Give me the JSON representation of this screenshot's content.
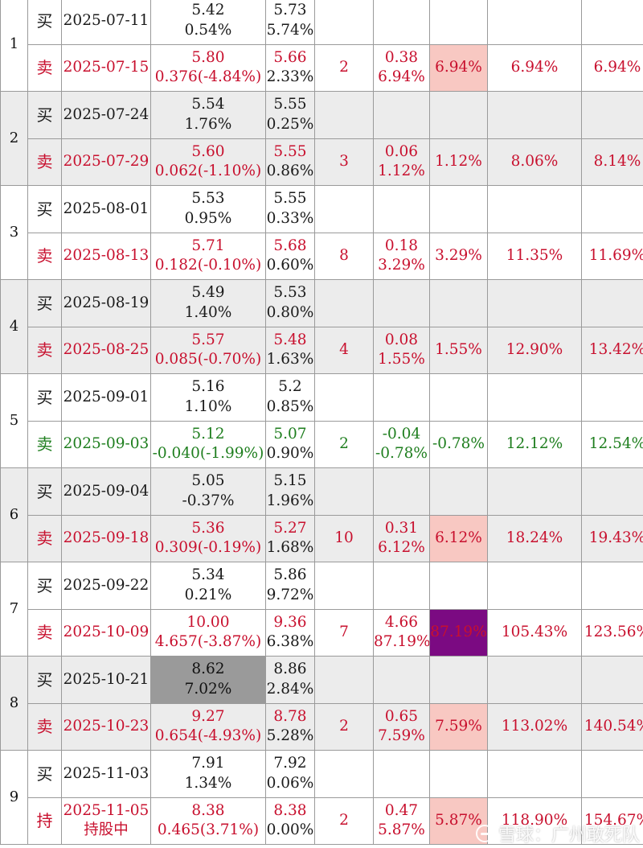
{
  "trades": [
    {
      "no": "1",
      "band": false,
      "buy": {
        "action": "买",
        "date": "2025-07-11",
        "price": "5.42",
        "pct": "0.54%",
        "ref": "5.73",
        "ref_pct": "5.74%"
      },
      "sell": {
        "action": "卖",
        "date": "2025-07-15",
        "price": "5.80",
        "detail": "0.376(-4.84%)",
        "ref": "5.66",
        "ref_pct": "2.33%",
        "days": "2",
        "gain": "0.38",
        "gain_pct": "6.94%",
        "ret": "6.94%",
        "cum": "6.94%",
        "comp": "6.94%",
        "color": "red",
        "ret_style": "pink"
      }
    },
    {
      "no": "2",
      "band": true,
      "buy": {
        "action": "买",
        "date": "2025-07-24",
        "price": "5.54",
        "pct": "1.76%",
        "ref": "5.55",
        "ref_pct": "0.25%"
      },
      "sell": {
        "action": "卖",
        "date": "2025-07-29",
        "price": "5.60",
        "detail": "0.062(-1.10%)",
        "ref": "5.55",
        "ref_pct": "0.86%",
        "days": "3",
        "gain": "0.06",
        "gain_pct": "1.12%",
        "ret": "1.12%",
        "cum": "8.06%",
        "comp": "8.14%",
        "color": "red",
        "ret_style": ""
      }
    },
    {
      "no": "3",
      "band": false,
      "buy": {
        "action": "买",
        "date": "2025-08-01",
        "price": "5.53",
        "pct": "0.95%",
        "ref": "5.55",
        "ref_pct": "0.33%"
      },
      "sell": {
        "action": "卖",
        "date": "2025-08-13",
        "price": "5.71",
        "detail": "0.182(-0.10%)",
        "ref": "5.68",
        "ref_pct": "0.60%",
        "days": "8",
        "gain": "0.18",
        "gain_pct": "3.29%",
        "ret": "3.29%",
        "cum": "11.35%",
        "comp": "11.69%",
        "color": "red",
        "ret_style": ""
      }
    },
    {
      "no": "4",
      "band": true,
      "buy": {
        "action": "买",
        "date": "2025-08-19",
        "price": "5.49",
        "pct": "1.40%",
        "ref": "5.53",
        "ref_pct": "0.80%"
      },
      "sell": {
        "action": "卖",
        "date": "2025-08-25",
        "price": "5.57",
        "detail": "0.085(-0.70%)",
        "ref": "5.48",
        "ref_pct": "1.63%",
        "days": "4",
        "gain": "0.08",
        "gain_pct": "1.55%",
        "ret": "1.55%",
        "cum": "12.90%",
        "comp": "13.42%",
        "color": "red",
        "ret_style": ""
      }
    },
    {
      "no": "5",
      "band": false,
      "buy": {
        "action": "买",
        "date": "2025-09-01",
        "price": "5.16",
        "pct": "1.10%",
        "ref": "5.2",
        "ref_pct": "0.85%"
      },
      "sell": {
        "action": "卖",
        "date": "2025-09-03",
        "price": "5.12",
        "detail": "-0.040(-1.99%)",
        "ref": "5.07",
        "ref_pct": "0.90%",
        "days": "2",
        "gain": "-0.04",
        "gain_pct": "-0.78%",
        "ret": "-0.78%",
        "cum": "12.12%",
        "comp": "12.54%",
        "color": "green",
        "ret_style": ""
      }
    },
    {
      "no": "6",
      "band": true,
      "buy": {
        "action": "买",
        "date": "2025-09-04",
        "price": "5.05",
        "pct": "-0.37%",
        "ref": "5.15",
        "ref_pct": "1.96%"
      },
      "sell": {
        "action": "卖",
        "date": "2025-09-18",
        "price": "5.36",
        "detail": "0.309(-0.19%)",
        "ref": "5.27",
        "ref_pct": "1.68%",
        "days": "10",
        "gain": "0.31",
        "gain_pct": "6.12%",
        "ret": "6.12%",
        "cum": "18.24%",
        "comp": "19.43%",
        "color": "red",
        "ret_style": "pink"
      }
    },
    {
      "no": "7",
      "band": false,
      "buy": {
        "action": "买",
        "date": "2025-09-22",
        "price": "5.34",
        "pct": "0.21%",
        "ref": "5.86",
        "ref_pct": "9.72%"
      },
      "sell": {
        "action": "卖",
        "date": "2025-10-09",
        "price": "10.00",
        "detail": "4.657(-3.87%)",
        "ref": "9.36",
        "ref_pct": "6.38%",
        "days": "7",
        "gain": "4.66",
        "gain_pct": "87.19%",
        "ret": "87.19%",
        "cum": "105.43%",
        "comp": "123.56%",
        "color": "red",
        "ret_style": "purple"
      }
    },
    {
      "no": "8",
      "band": true,
      "buy": {
        "action": "买",
        "date": "2025-10-21",
        "price": "8.62",
        "pct": "7.02%",
        "ref": "8.86",
        "ref_pct": "2.84%",
        "price_style": "gray"
      },
      "sell": {
        "action": "卖",
        "date": "2025-10-23",
        "price": "9.27",
        "detail": "0.654(-4.93%)",
        "ref": "8.78",
        "ref_pct": "5.28%",
        "days": "2",
        "gain": "0.65",
        "gain_pct": "7.59%",
        "ret": "7.59%",
        "cum": "113.02%",
        "comp": "140.54%",
        "color": "red",
        "ret_style": "pink"
      }
    },
    {
      "no": "9",
      "band": false,
      "buy": {
        "action": "买",
        "date": "2025-11-03",
        "price": "7.91",
        "pct": "1.34%",
        "ref": "7.92",
        "ref_pct": "0.06%"
      },
      "sell": {
        "action": "持",
        "date": "2025-11-05",
        "date_note": "持股中",
        "price": "8.38",
        "detail": "0.465(3.71%)",
        "ref": "8.38",
        "ref_pct": "0.00%",
        "days": "2",
        "gain": "0.47",
        "gain_pct": "5.87%",
        "ret": "5.87%",
        "cum": "118.90%",
        "comp": "154.67%",
        "color": "red",
        "ret_style": "pink"
      }
    }
  ],
  "watermark": {
    "text": "雪球：广州敢死队"
  }
}
